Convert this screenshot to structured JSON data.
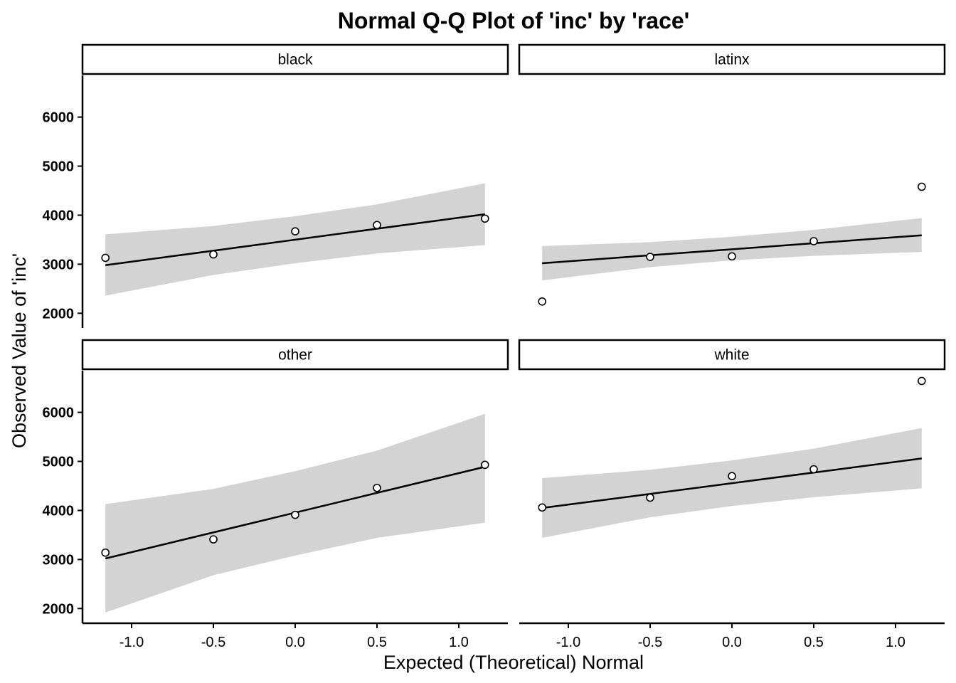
{
  "chart_data": {
    "type": "scatter",
    "title": "Normal Q-Q Plot of 'inc' by 'race'",
    "xlabel": "Expected (Theoretical) Normal",
    "ylabel": "Observed Value of 'inc'",
    "xlim": [
      -1.3,
      1.3
    ],
    "ylim": [
      1700,
      6850
    ],
    "x_ticks": [
      -1.0,
      -0.5,
      0.0,
      0.5,
      1.0
    ],
    "x_tick_labels": [
      "-1.0",
      "-0.5",
      "0.0",
      "0.5",
      "1.0"
    ],
    "y_ticks": [
      2000,
      3000,
      4000,
      5000,
      6000
    ],
    "y_tick_labels": [
      "2000",
      "3000",
      "4000",
      "5000",
      "6000"
    ],
    "grid": false,
    "panels": [
      {
        "name": "black",
        "x": [
          -1.16,
          -0.5,
          0.0,
          0.5,
          1.16
        ],
        "y": [
          3130,
          3200,
          3670,
          3800,
          3930
        ],
        "line": [
          [
            -1.16,
            2980
          ],
          [
            1.16,
            4020
          ]
        ],
        "band_upper": [
          [
            -1.16,
            3610
          ],
          [
            -0.5,
            3780
          ],
          [
            0.0,
            3980
          ],
          [
            0.5,
            4220
          ],
          [
            1.16,
            4650
          ]
        ],
        "band_lower": [
          [
            -1.16,
            2360
          ],
          [
            -0.5,
            2780
          ],
          [
            0.0,
            3020
          ],
          [
            0.5,
            3220
          ],
          [
            1.16,
            3390
          ]
        ]
      },
      {
        "name": "latinx",
        "x": [
          -1.16,
          -0.5,
          0.0,
          0.5,
          1.16
        ],
        "y": [
          2240,
          3150,
          3160,
          3470,
          4580
        ],
        "line": [
          [
            -1.16,
            3020
          ],
          [
            1.16,
            3590
          ]
        ],
        "band_upper": [
          [
            -1.16,
            3370
          ],
          [
            -0.5,
            3450
          ],
          [
            0.0,
            3560
          ],
          [
            0.5,
            3700
          ],
          [
            1.16,
            3940
          ]
        ],
        "band_lower": [
          [
            -1.16,
            2670
          ],
          [
            -0.5,
            2940
          ],
          [
            0.0,
            3080
          ],
          [
            0.5,
            3170
          ],
          [
            1.16,
            3250
          ]
        ]
      },
      {
        "name": "other",
        "x": [
          -1.16,
          -0.5,
          0.0,
          0.5,
          1.16
        ],
        "y": [
          3140,
          3410,
          3910,
          4460,
          4930
        ],
        "line": [
          [
            -1.16,
            3020
          ],
          [
            1.16,
            4890
          ]
        ],
        "band_upper": [
          [
            -1.16,
            4130
          ],
          [
            -0.5,
            4440
          ],
          [
            0.0,
            4800
          ],
          [
            0.5,
            5220
          ],
          [
            1.16,
            5970
          ]
        ],
        "band_lower": [
          [
            -1.16,
            1920
          ],
          [
            -0.5,
            2680
          ],
          [
            0.0,
            3080
          ],
          [
            0.5,
            3440
          ],
          [
            1.16,
            3750
          ]
        ]
      },
      {
        "name": "white",
        "x": [
          -1.16,
          -0.5,
          0.0,
          0.5,
          1.16
        ],
        "y": [
          4060,
          4260,
          4700,
          4840,
          6640
        ],
        "line": [
          [
            -1.16,
            4050
          ],
          [
            1.16,
            5060
          ]
        ],
        "band_upper": [
          [
            -1.16,
            4660
          ],
          [
            -0.5,
            4830
          ],
          [
            0.0,
            5020
          ],
          [
            0.5,
            5260
          ],
          [
            1.16,
            5680
          ]
        ],
        "band_lower": [
          [
            -1.16,
            3440
          ],
          [
            -0.5,
            3860
          ],
          [
            0.0,
            4090
          ],
          [
            0.5,
            4270
          ],
          [
            1.16,
            4450
          ]
        ]
      }
    ]
  }
}
